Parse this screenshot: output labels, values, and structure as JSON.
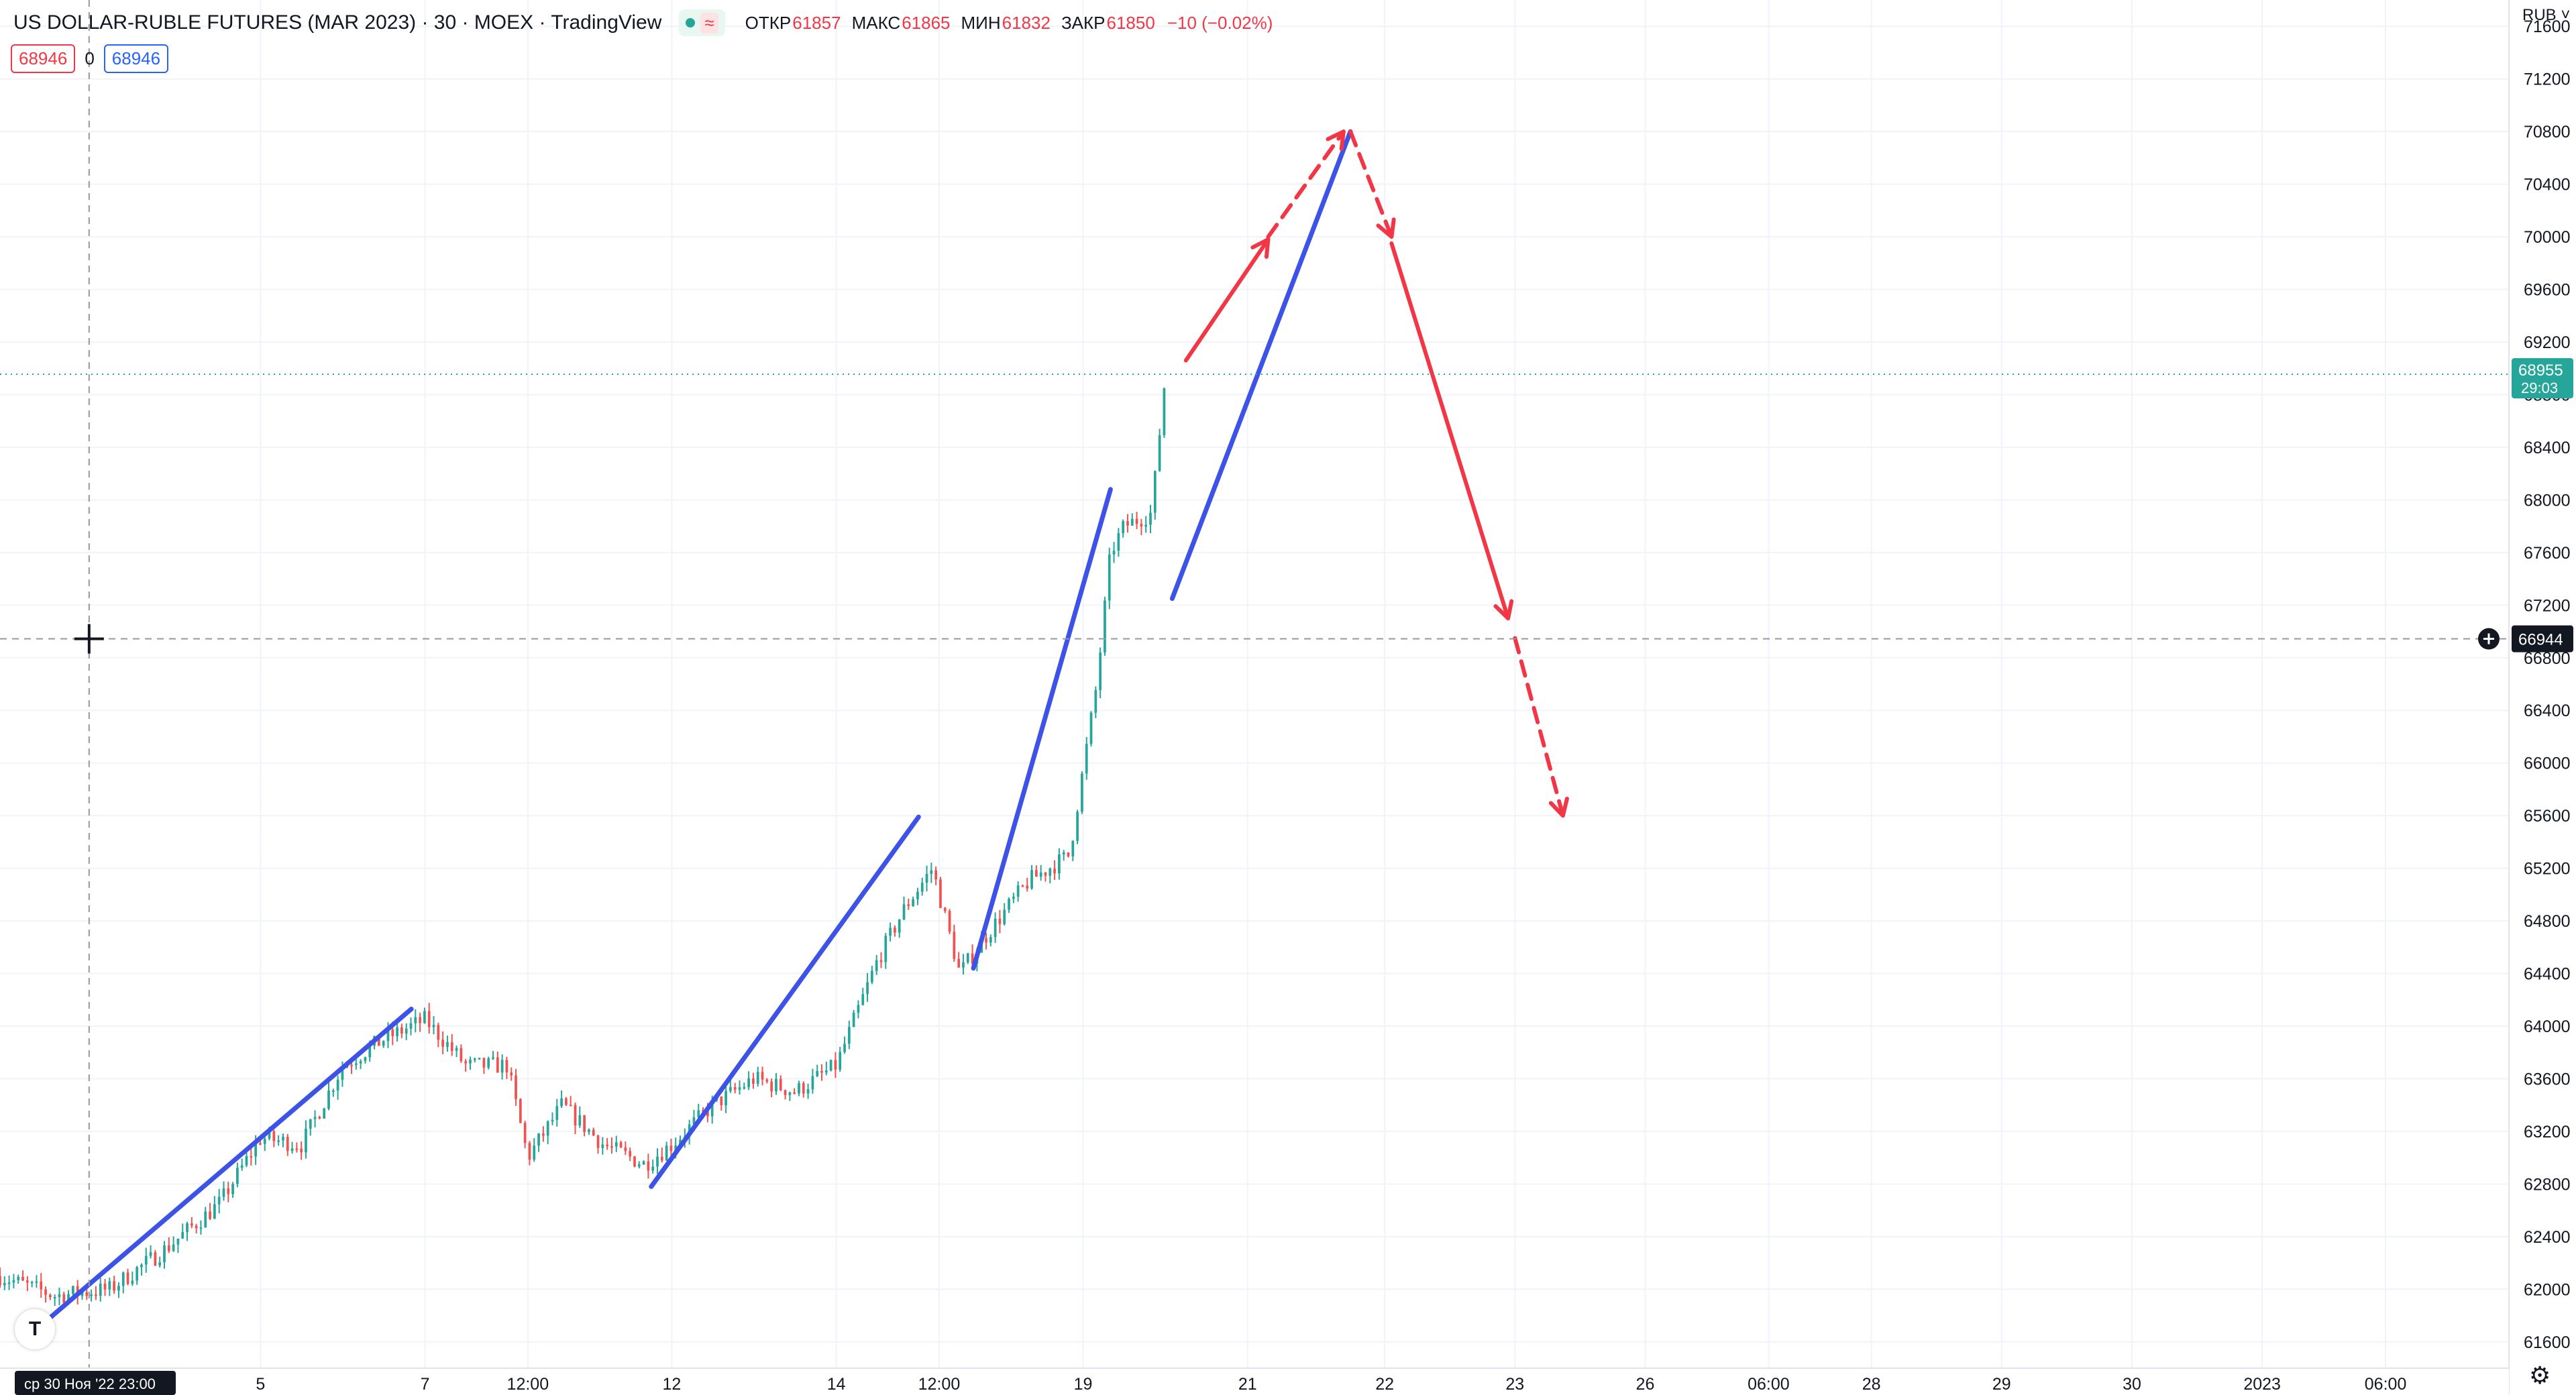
{
  "header": {
    "title": "US DOLLAR-RUBLE FUTURES (MAR 2023) · 30 · MOEX · TradingView",
    "wave_symbol": "≈",
    "ohlc": [
      {
        "k": "ОТКР",
        "v": "61857"
      },
      {
        "k": "МАКС",
        "v": "61865"
      },
      {
        "k": "МИН",
        "v": "61832"
      },
      {
        "k": "ЗАКР",
        "v": "61850"
      },
      {
        "k": "",
        "v": "−10 (−0.02%)"
      }
    ]
  },
  "quote": {
    "sell": "68946",
    "spread": "0",
    "buy": "68946"
  },
  "price_axis": {
    "currency": "RUB",
    "min": 61400,
    "max": 71800,
    "ticks": [
      61600,
      62000,
      62400,
      62800,
      63200,
      63600,
      64000,
      64400,
      64800,
      65200,
      65600,
      66000,
      66400,
      66800,
      67200,
      67600,
      68000,
      68400,
      68800,
      69200,
      69600,
      70000,
      70400,
      70800,
      71200,
      71600
    ]
  },
  "last_price": {
    "value": 68955,
    "label": "68955",
    "countdown": "29:03",
    "color": "#26a69a"
  },
  "crosshair": {
    "price": 66944,
    "label": "66944",
    "date_label": "ср 30 Ноя '22   23:00",
    "bar": 6.5
  },
  "time_axis": {
    "total_bars": 310,
    "ticks": [
      {
        "bar": 19,
        "label": "5"
      },
      {
        "bar": 31,
        "label": "7"
      },
      {
        "bar": 38.5,
        "label": "12:00"
      },
      {
        "bar": 49,
        "label": "12"
      },
      {
        "bar": 61,
        "label": "14"
      },
      {
        "bar": 68.5,
        "label": "12:00"
      },
      {
        "bar": 79,
        "label": "19"
      },
      {
        "bar": 91,
        "label": "21"
      },
      {
        "bar": 101,
        "label": "22"
      },
      {
        "bar": 110.5,
        "label": "23"
      },
      {
        "bar": 120,
        "label": "26"
      },
      {
        "bar": 129,
        "label": "06:00"
      },
      {
        "bar": 136.5,
        "label": "28"
      },
      {
        "bar": 146,
        "label": "29"
      },
      {
        "bar": 155.5,
        "label": "30"
      },
      {
        "bar": 165,
        "label": "2023"
      },
      {
        "bar": 174,
        "label": "06:00"
      }
    ]
  },
  "chart_data": {
    "type": "candlestick",
    "up_color": "#26a69a",
    "down_color": "#ef5350",
    "anchors": [
      [
        0,
        62100
      ],
      [
        4,
        61950
      ],
      [
        8,
        62000
      ],
      [
        12,
        62300
      ],
      [
        16,
        62650
      ],
      [
        19,
        63150
      ],
      [
        22,
        63100
      ],
      [
        25,
        63700
      ],
      [
        28,
        63900
      ],
      [
        31,
        64050
      ],
      [
        34,
        63700
      ],
      [
        37,
        63700
      ],
      [
        38.5,
        63000
      ],
      [
        41,
        63400
      ],
      [
        44,
        63100
      ],
      [
        47,
        62950
      ],
      [
        49,
        63100
      ],
      [
        52,
        63400
      ],
      [
        55,
        63600
      ],
      [
        58,
        63500
      ],
      [
        61,
        63700
      ],
      [
        64,
        64500
      ],
      [
        66,
        64900
      ],
      [
        68,
        65200
      ],
      [
        70,
        64400
      ],
      [
        72,
        64700
      ],
      [
        75,
        65100
      ],
      [
        78,
        65300
      ],
      [
        80,
        66600
      ],
      [
        81,
        67600
      ],
      [
        82,
        67800
      ],
      [
        84,
        67900
      ],
      [
        85,
        68950
      ]
    ],
    "drawings": {
      "trend_lines": [
        {
          "from": [
            3.5,
            61770
          ],
          "to": [
            30,
            64130
          ]
        },
        {
          "from": [
            47.5,
            62780
          ],
          "to": [
            67,
            65590
          ]
        },
        {
          "from": [
            71,
            64440
          ],
          "to": [
            81,
            68080
          ]
        },
        {
          "from": [
            85.5,
            67250
          ],
          "to": [
            98.5,
            70800
          ]
        }
      ],
      "arrows": [
        {
          "from": [
            86.5,
            69060
          ],
          "to": [
            92.5,
            69980
          ],
          "style": "solid"
        },
        {
          "from": [
            92.5,
            70000
          ],
          "to": [
            98,
            70800
          ],
          "style": "dashed"
        },
        {
          "from": [
            98.5,
            70800
          ],
          "to": [
            101.5,
            70000
          ],
          "style": "dashed"
        },
        {
          "from": [
            101.5,
            69950
          ],
          "to": [
            110,
            67100
          ],
          "style": "solid"
        },
        {
          "from": [
            110.5,
            66950
          ],
          "to": [
            114,
            65600
          ],
          "style": "dashed"
        }
      ],
      "line_colors": {
        "trend": "#3d52e6",
        "arrow": "#f23645"
      }
    }
  }
}
